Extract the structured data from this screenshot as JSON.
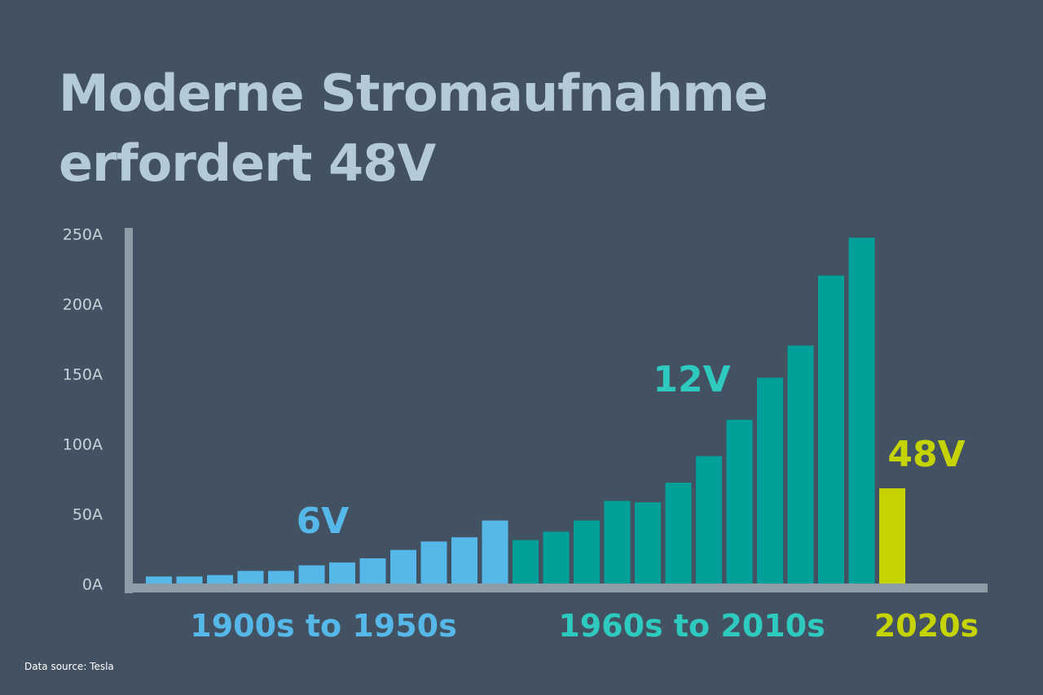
{
  "title": {
    "line1": "Moderne Stromaufnahme",
    "line2": "erfordert 48V"
  },
  "source": "Data source: Tesla",
  "colors": {
    "background": "#435262",
    "title": "#b4cad6",
    "axis": "#8d9da8",
    "tick_label": "#c8d2d9",
    "v6": "#55b8e8",
    "v12": "#00a09a",
    "v12_label": "#2ec9bf",
    "v48": "#c5d400"
  },
  "chart_data": {
    "type": "bar",
    "ylim": [
      0,
      250
    ],
    "yticks": [
      "0A",
      "50A",
      "100A",
      "150A",
      "200A",
      "250A"
    ],
    "grid": false,
    "groups": [
      {
        "name": "6V",
        "period": "1900s to 1950s",
        "color": "#55b8e8",
        "values": [
          5,
          5,
          6,
          9,
          9,
          13,
          15,
          18,
          24,
          30,
          33,
          45
        ]
      },
      {
        "name": "12V",
        "period": "1960s to 2010s",
        "color": "#00a09a",
        "values": [
          31,
          37,
          45,
          59,
          58,
          72,
          91,
          117,
          147,
          170,
          220,
          247
        ]
      },
      {
        "name": "48V",
        "period": "2020s",
        "color": "#c5d400",
        "values": [
          68
        ]
      }
    ]
  }
}
